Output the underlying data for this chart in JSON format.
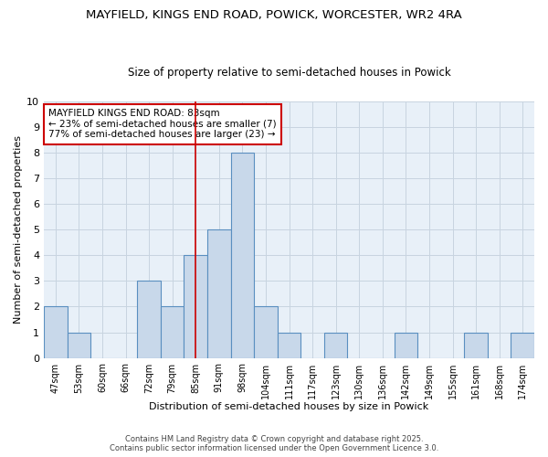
{
  "title1": "MAYFIELD, KINGS END ROAD, POWICK, WORCESTER, WR2 4RA",
  "title2": "Size of property relative to semi-detached houses in Powick",
  "xlabel": "Distribution of semi-detached houses by size in Powick",
  "ylabel": "Number of semi-detached properties",
  "categories": [
    "47sqm",
    "53sqm",
    "60sqm",
    "66sqm",
    "72sqm",
    "79sqm",
    "85sqm",
    "91sqm",
    "98sqm",
    "104sqm",
    "111sqm",
    "117sqm",
    "123sqm",
    "130sqm",
    "136sqm",
    "142sqm",
    "149sqm",
    "155sqm",
    "161sqm",
    "168sqm",
    "174sqm"
  ],
  "values": [
    2,
    1,
    0,
    0,
    3,
    2,
    4,
    5,
    8,
    2,
    1,
    0,
    1,
    0,
    0,
    1,
    0,
    0,
    1,
    0,
    1
  ],
  "bar_color": "#c8d8ea",
  "bar_edge_color": "#5a8fc0",
  "grid_color": "#c8d4e0",
  "plot_bg_color": "#e8f0f8",
  "fig_bg_color": "#ffffff",
  "vline_x_index": 6,
  "vline_color": "#cc0000",
  "ylim": [
    0,
    10
  ],
  "yticks": [
    0,
    1,
    2,
    3,
    4,
    5,
    6,
    7,
    8,
    9,
    10
  ],
  "legend_title": "MAYFIELD KINGS END ROAD: 83sqm",
  "legend_line1": "← 23% of semi-detached houses are smaller (7)",
  "legend_line2": "77% of semi-detached houses are larger (23) →",
  "legend_box_color": "white",
  "legend_box_edge_color": "#cc0000",
  "footnote1": "Contains HM Land Registry data © Crown copyright and database right 2025.",
  "footnote2": "Contains public sector information licensed under the Open Government Licence 3.0."
}
